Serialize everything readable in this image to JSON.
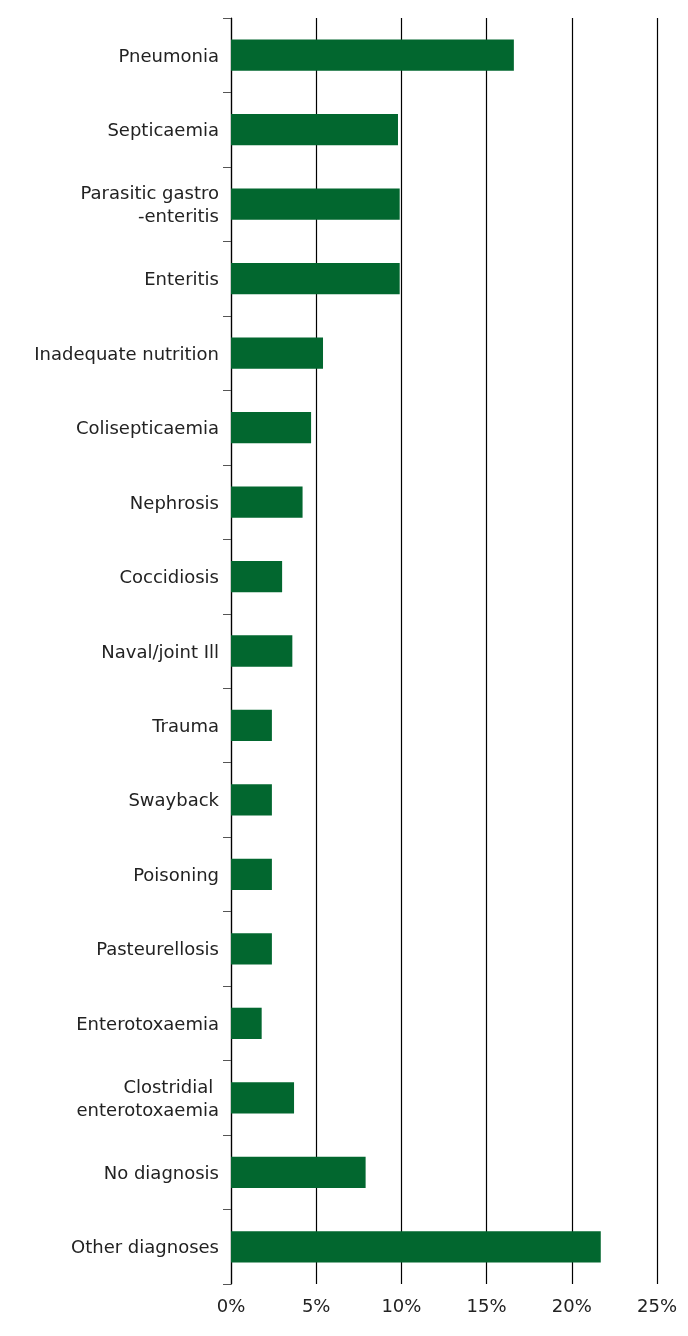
{
  "chart_data": {
    "type": "bar",
    "orientation": "horizontal",
    "categories": [
      "Pneumonia",
      "Septicaemia",
      "Parasitic gastro\n-enteritis",
      "Enteritis",
      "Inadequate nutrition",
      "Colisepticaemia",
      "Nephrosis",
      "Coccidiosis",
      "Naval/joint Ill",
      "Trauma",
      "Swayback",
      "Poisoning",
      "Pasteurellosis",
      "Enterotoxaemia",
      "Clostridial \nenterotoxaemia",
      "No diagnosis",
      "Other diagnoses"
    ],
    "values": [
      16.6,
      9.8,
      9.9,
      9.9,
      5.4,
      4.7,
      4.2,
      3.0,
      3.6,
      2.4,
      2.4,
      2.4,
      2.4,
      1.8,
      3.7,
      7.9,
      21.7
    ],
    "color": "#02672f",
    "xlim": [
      0,
      25
    ],
    "xticks": [
      {
        "value": 0,
        "label": "0%"
      },
      {
        "value": 5,
        "label": "5%"
      },
      {
        "value": 10,
        "label": "10%"
      },
      {
        "value": 15,
        "label": "15%"
      },
      {
        "value": 20,
        "label": "20%"
      },
      {
        "value": 25,
        "label": "25%"
      }
    ],
    "grid": "x"
  }
}
